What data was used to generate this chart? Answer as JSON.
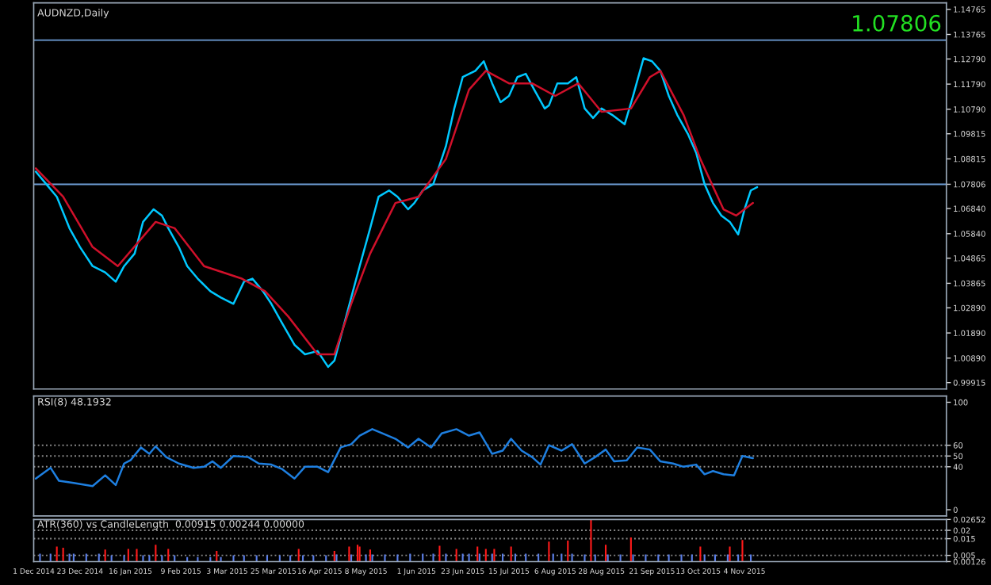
{
  "chart_data": [
    {
      "type": "line",
      "title": "AUDNZD,Daily",
      "annotations": [
        "1.07806"
      ],
      "xlim": [
        "2014-12-01",
        "2016-02-08"
      ],
      "ylim": [
        0.9966,
        1.1502
      ],
      "tick_labels": "y",
      "grid": false,
      "legend": false,
      "yticks": [
        1.14765,
        1.13765,
        {
          "value": 1.1279,
          "label": "1.12790"
        },
        {
          "value": 1.1179,
          "label": "1.11790"
        },
        {
          "value": 1.1079,
          "label": "1.10790"
        },
        1.09815,
        1.08815,
        1.07806,
        {
          "value": 1.0684,
          "label": "1.06840"
        },
        {
          "value": 1.0584,
          "label": "1.05840"
        },
        1.04865,
        1.03865,
        {
          "value": 1.0289,
          "label": "1.02890"
        },
        {
          "value": 1.0189,
          "label": "1.01890"
        },
        {
          "value": 1.0089,
          "label": "1.00890"
        },
        0.99915
      ],
      "ref_lines": [
        {
          "axis": "y",
          "value": 1.1354,
          "color": "#6f9fd8",
          "line_style": "solid"
        },
        {
          "axis": "y",
          "value": 1.07806,
          "color": "#6f9fd8",
          "line_style": "solid"
        }
      ],
      "series": [
        {
          "color": "#00c8ff",
          "x": [
            "2014-12-02",
            "2014-12-07",
            "2014-12-12",
            "2014-12-18",
            "2014-12-23",
            "2014-12-29",
            "2015-01-04",
            "2015-01-09",
            "2015-01-13",
            "2015-01-18",
            "2015-01-22",
            "2015-01-27",
            "2015-01-31",
            "2015-02-03",
            "2015-02-08",
            "2015-02-12",
            "2015-02-17",
            "2015-02-23",
            "2015-02-28",
            "2015-03-06",
            "2015-03-11",
            "2015-03-15",
            "2015-03-20",
            "2015-03-24",
            "2015-03-29",
            "2015-04-04",
            "2015-04-09",
            "2015-04-15",
            "2015-04-20",
            "2015-04-23",
            "2015-04-27",
            "2015-05-01",
            "2015-05-05",
            "2015-05-10",
            "2015-05-14",
            "2015-05-19",
            "2015-05-23",
            "2015-05-28",
            "2015-05-31",
            "2015-06-04",
            "2015-06-09",
            "2015-06-15",
            "2015-06-19",
            "2015-06-23",
            "2015-06-29",
            "2015-07-03",
            "2015-07-07",
            "2015-07-11",
            "2015-07-15",
            "2015-07-19",
            "2015-07-23",
            "2015-07-27",
            "2015-08-01",
            "2015-08-03",
            "2015-08-07",
            "2015-08-12",
            "2015-08-16",
            "2015-08-20",
            "2015-08-24",
            "2015-08-28",
            "2015-09-02",
            "2015-09-08",
            "2015-09-12",
            "2015-09-17",
            "2015-09-21",
            "2015-09-25",
            "2015-09-29",
            "2015-10-03",
            "2015-10-08",
            "2015-10-12",
            "2015-10-16",
            "2015-10-20",
            "2015-10-24",
            "2015-10-28",
            "2015-11-01",
            "2015-11-04",
            "2015-11-07",
            "2015-11-10"
          ],
          "values": [
            1.0831,
            1.0781,
            1.0731,
            1.0606,
            1.0531,
            1.0455,
            1.043,
            1.0393,
            1.0455,
            1.0505,
            1.0631,
            1.0681,
            1.0656,
            1.0606,
            1.0531,
            1.0455,
            1.0405,
            1.0355,
            1.033,
            1.0305,
            1.0393,
            1.0405,
            1.0355,
            1.0305,
            1.023,
            1.0142,
            1.0104,
            1.0117,
            1.0054,
            1.0079,
            1.0205,
            1.033,
            1.0455,
            1.0606,
            1.0731,
            1.0756,
            1.0731,
            1.0681,
            1.0706,
            1.0756,
            1.0781,
            1.0932,
            1.1082,
            1.1207,
            1.1232,
            1.127,
            1.1182,
            1.1107,
            1.1132,
            1.1207,
            1.122,
            1.1157,
            1.1082,
            1.1094,
            1.1182,
            1.1182,
            1.1207,
            1.1082,
            1.1044,
            1.1082,
            1.1057,
            1.1019,
            1.1132,
            1.1282,
            1.127,
            1.1232,
            1.1132,
            1.1057,
            1.0982,
            1.0906,
            1.0781,
            1.0706,
            1.0656,
            1.0631,
            1.0581,
            1.0681,
            1.0756,
            1.0769
          ]
        },
        {
          "color": "#d0102a",
          "x": [
            "2014-12-02",
            "2014-12-15",
            "2014-12-29",
            "2015-01-10",
            "2015-01-28",
            "2015-02-06",
            "2015-02-20",
            "2015-03-10",
            "2015-03-21",
            "2015-04-01",
            "2015-04-15",
            "2015-04-23",
            "2015-05-01",
            "2015-05-10",
            "2015-05-22",
            "2015-06-02",
            "2015-06-15",
            "2015-06-26",
            "2015-07-04",
            "2015-07-15",
            "2015-07-26",
            "2015-08-06",
            "2015-08-17",
            "2015-08-28",
            "2015-09-11",
            "2015-09-20",
            "2015-09-25",
            "2015-10-06",
            "2015-10-14",
            "2015-10-25",
            "2015-10-31",
            "2015-11-08"
          ],
          "values": [
            1.0844,
            1.0731,
            1.0531,
            1.0455,
            1.0631,
            1.0606,
            1.0455,
            1.0405,
            1.0355,
            1.0255,
            1.0104,
            1.0104,
            1.0305,
            1.0505,
            1.0706,
            1.0731,
            1.0881,
            1.1157,
            1.1232,
            1.1182,
            1.1182,
            1.1132,
            1.1182,
            1.1069,
            1.1082,
            1.1207,
            1.1232,
            1.1057,
            1.0881,
            1.0681,
            1.0656,
            1.0706
          ]
        }
      ]
    },
    {
      "type": "line",
      "title": "RSI(8) 48.1932",
      "xlim": [
        "2014-12-01",
        "2016-02-08"
      ],
      "ylim": [
        -5.8,
        105.8
      ],
      "tick_labels": "y",
      "grid": false,
      "legend": false,
      "yticks": [
        100,
        60,
        50,
        40,
        0
      ],
      "ref_lines": [
        {
          "axis": "y",
          "value": 60,
          "color": "#8a8a8a",
          "line_style": "dotted"
        },
        {
          "axis": "y",
          "value": 50,
          "color": "#8a8a8a",
          "line_style": "dotted"
        },
        {
          "axis": "y",
          "value": 40,
          "color": "#8a8a8a",
          "line_style": "dotted"
        }
      ],
      "series": [
        {
          "color": "#1e7fe0",
          "x": [
            "2014-12-02",
            "2014-12-09",
            "2014-12-13",
            "2014-12-20",
            "2014-12-29",
            "2015-01-04",
            "2015-01-09",
            "2015-01-13",
            "2015-01-16",
            "2015-01-21",
            "2015-01-25",
            "2015-01-28",
            "2015-02-02",
            "2015-02-08",
            "2015-02-15",
            "2015-02-20",
            "2015-02-24",
            "2015-02-28",
            "2015-03-06",
            "2015-03-13",
            "2015-03-18",
            "2015-03-24",
            "2015-03-29",
            "2015-04-04",
            "2015-04-09",
            "2015-04-15",
            "2015-04-20",
            "2015-04-26",
            "2015-05-01",
            "2015-05-05",
            "2015-05-11",
            "2015-05-16",
            "2015-05-22",
            "2015-05-28",
            "2015-06-02",
            "2015-06-08",
            "2015-06-13",
            "2015-06-20",
            "2015-06-26",
            "2015-07-01",
            "2015-07-07",
            "2015-07-12",
            "2015-07-16",
            "2015-07-21",
            "2015-07-26",
            "2015-07-30",
            "2015-08-03",
            "2015-08-09",
            "2015-08-14",
            "2015-08-20",
            "2015-08-25",
            "2015-08-30",
            "2015-09-03",
            "2015-09-09",
            "2015-09-14",
            "2015-09-20",
            "2015-09-25",
            "2015-10-01",
            "2015-10-06",
            "2015-10-12",
            "2015-10-16",
            "2015-10-20",
            "2015-10-25",
            "2015-10-30",
            "2015-11-03",
            "2015-11-08"
          ],
          "values": [
            29,
            39,
            27,
            25,
            22,
            32,
            23,
            43,
            46,
            58,
            52,
            59,
            49,
            43,
            39,
            40,
            45,
            39,
            50,
            49,
            43,
            42,
            38,
            29,
            40,
            40,
            35,
            58,
            61,
            69,
            75,
            71,
            66,
            58,
            66,
            58,
            71,
            75,
            69,
            72,
            52,
            55,
            66,
            55,
            49,
            42,
            60,
            55,
            61,
            43,
            49,
            56,
            45,
            46,
            58,
            56,
            45,
            43,
            40,
            42,
            33,
            36,
            33,
            32,
            50,
            48
          ]
        }
      ]
    },
    {
      "type": "bar",
      "title": "ATR(360) vs CandleLength  0.00915 0.00244 0.00000",
      "xlim": [
        "2014-12-01",
        "2016-02-08"
      ],
      "ylim": [
        0.00126,
        0.02652
      ],
      "grid": false,
      "legend": false,
      "yticks": [
        0.02652,
        0.02,
        0.015,
        0.005,
        0.00126
      ],
      "xticks": [
        {
          "value": "2014-12-01",
          "label": "1 Dec 2014"
        },
        {
          "value": "2014-12-23",
          "label": "23 Dec 2014"
        },
        {
          "value": "2015-01-16",
          "label": "16 Jan 2015"
        },
        {
          "value": "2015-02-09",
          "label": "9 Feb 2015"
        },
        {
          "value": "2015-03-03",
          "label": "3 Mar 2015"
        },
        {
          "value": "2015-03-25",
          "label": "25 Mar 2015"
        },
        {
          "value": "2015-04-16",
          "label": "16 Apr 2015"
        },
        {
          "value": "2015-05-08",
          "label": "8 May 2015"
        },
        {
          "value": "2015-06-01",
          "label": "1 Jun 2015"
        },
        {
          "value": "2015-06-23",
          "label": "23 Jun 2015"
        },
        {
          "value": "2015-07-15",
          "label": "15 Jul 2015"
        },
        {
          "value": "2015-08-06",
          "label": "6 Aug 2015"
        },
        {
          "value": "2015-08-28",
          "label": "28 Aug 2015"
        },
        {
          "value": "2015-09-21",
          "label": "21 Sep 2015"
        },
        {
          "value": "2015-10-13",
          "label": "13 Oct 2015"
        },
        {
          "value": "2015-11-04",
          "label": "4 Nov 2015"
        }
      ],
      "ref_lines": [
        {
          "axis": "y",
          "value": 0.02,
          "color": "#8a8a8a",
          "line_style": "dotted"
        },
        {
          "axis": "y",
          "value": 0.015,
          "color": "#8a8a8a",
          "line_style": "dotted"
        },
        {
          "axis": "y",
          "value": 0.005,
          "color": "#8a8a8a",
          "line_style": "dotted"
        }
      ],
      "series": [
        {
          "color": "#5a7ee8",
          "x": [
            "2014-12-04",
            "2014-12-09",
            "2014-12-18",
            "2014-12-20",
            "2014-12-26",
            "2015-01-01",
            "2015-01-07",
            "2015-01-13",
            "2015-01-22",
            "2015-01-25",
            "2015-01-31",
            "2015-02-06",
            "2015-02-12",
            "2015-02-17",
            "2015-02-23",
            "2015-02-28",
            "2015-03-06",
            "2015-03-11",
            "2015-03-17",
            "2015-03-22",
            "2015-03-28",
            "2015-04-02",
            "2015-04-08",
            "2015-04-13",
            "2015-04-19",
            "2015-04-24",
            "2015-05-01",
            "2015-05-08",
            "2015-05-11",
            "2015-05-17",
            "2015-05-23",
            "2015-05-29",
            "2015-06-04",
            "2015-06-09",
            "2015-06-15",
            "2015-06-23",
            "2015-06-26",
            "2015-07-01",
            "2015-07-07",
            "2015-07-12",
            "2015-07-18",
            "2015-07-23",
            "2015-07-29",
            "2015-08-05",
            "2015-08-09",
            "2015-08-14",
            "2015-08-20",
            "2015-08-25",
            "2015-08-31",
            "2015-09-06",
            "2015-09-12",
            "2015-09-18",
            "2015-09-24",
            "2015-09-29",
            "2015-10-05",
            "2015-10-10",
            "2015-10-16",
            "2015-10-21",
            "2015-10-27",
            "2015-11-01",
            "2015-11-07"
          ],
          "values": [
            0.006,
            0.006,
            0.006,
            0.006,
            0.006,
            0.006,
            0.005,
            0.005,
            0.005,
            0.005,
            0.005,
            0.005,
            0.004,
            0.004,
            0.004,
            0.004,
            0.005,
            0.005,
            0.005,
            0.005,
            0.005,
            0.005,
            0.005,
            0.005,
            0.005,
            0.0055,
            0.0055,
            0.0055,
            0.0055,
            0.0055,
            0.0055,
            0.006,
            0.006,
            0.006,
            0.006,
            0.006,
            0.006,
            0.006,
            0.006,
            0.006,
            0.006,
            0.006,
            0.006,
            0.006,
            0.006,
            0.006,
            0.0055,
            0.0055,
            0.0055,
            0.0055,
            0.0055,
            0.0055,
            0.0055,
            0.0055,
            0.0055,
            0.0055,
            0.0055,
            0.0055,
            0.0055,
            0.0055,
            0.0055
          ]
        },
        {
          "color": "#ff1a1a",
          "x": [
            "2014-12-12",
            "2014-12-15",
            "2015-01-04",
            "2015-01-15",
            "2015-01-19",
            "2015-01-28",
            "2015-02-03",
            "2015-02-26",
            "2015-04-06",
            "2015-04-23",
            "2015-04-30",
            "2015-05-04",
            "2015-05-05",
            "2015-05-10",
            "2015-06-12",
            "2015-06-20",
            "2015-06-30",
            "2015-07-04",
            "2015-07-08",
            "2015-07-16",
            "2015-08-03",
            "2015-08-12",
            "2015-08-23",
            "2015-08-30",
            "2015-09-11",
            "2015-10-14",
            "2015-10-28",
            "2015-11-03"
          ],
          "values": [
            0.0103,
            0.0096,
            0.0085,
            0.0088,
            0.0088,
            0.0114,
            0.0088,
            0.0077,
            0.0088,
            0.0077,
            0.0103,
            0.0114,
            0.0103,
            0.0085,
            0.0107,
            0.0088,
            0.0103,
            0.0088,
            0.0088,
            0.0103,
            0.0132,
            0.0139,
            0.0265,
            0.0114,
            0.0157,
            0.0103,
            0.0103,
            0.0142
          ]
        }
      ]
    }
  ]
}
